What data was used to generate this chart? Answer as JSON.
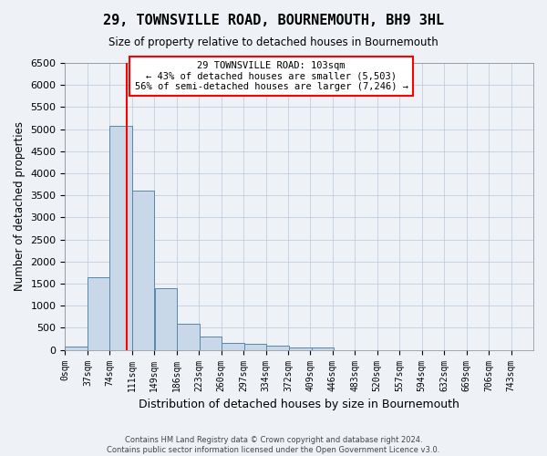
{
  "title": "29, TOWNSVILLE ROAD, BOURNEMOUTH, BH9 3HL",
  "subtitle": "Size of property relative to detached houses in Bournemouth",
  "xlabel": "Distribution of detached houses by size in Bournemouth",
  "ylabel": "Number of detached properties",
  "bar_values": [
    75,
    1650,
    5075,
    3600,
    1400,
    600,
    300,
    155,
    130,
    95,
    55,
    50
  ],
  "bin_edges": [
    0,
    37,
    74,
    111,
    149,
    186,
    223,
    260,
    297,
    334,
    372,
    409,
    446
  ],
  "x_tick_labels": [
    "0sqm",
    "37sqm",
    "74sqm",
    "111sqm",
    "149sqm",
    "186sqm",
    "223sqm",
    "260sqm",
    "297sqm",
    "334sqm",
    "372sqm",
    "409sqm",
    "446sqm",
    "483sqm",
    "520sqm",
    "557sqm",
    "594sqm",
    "632sqm",
    "669sqm",
    "706sqm",
    "743sqm"
  ],
  "bar_color": "#c8d8e8",
  "bar_edge_color": "#5588aa",
  "vline_x": 103,
  "vline_color": "red",
  "annotation_text": "29 TOWNSVILLE ROAD: 103sqm\n← 43% of detached houses are smaller (5,503)\n56% of semi-detached houses are larger (7,246) →",
  "annotation_box_color": "white",
  "annotation_box_edge_color": "red",
  "ylim": [
    0,
    6500
  ],
  "yticks": [
    0,
    500,
    1000,
    1500,
    2000,
    2500,
    3000,
    3500,
    4000,
    4500,
    5000,
    5500,
    6000,
    6500
  ],
  "footer_line1": "Contains HM Land Registry data © Crown copyright and database right 2024.",
  "footer_line2": "Contains public sector information licensed under the Open Government Licence v3.0.",
  "background_color": "#eef2f7",
  "grid_color": "#b8c8dc"
}
